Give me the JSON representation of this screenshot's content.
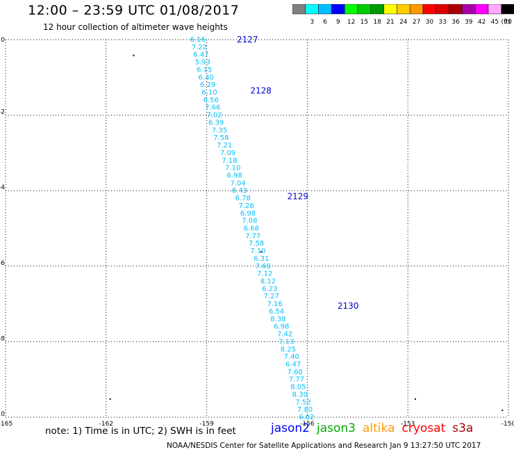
{
  "title": "12:00 – 23:59 UTC 01/08/2017",
  "subtitle": "12 hour collection of altimeter wave heights",
  "colorbar": {
    "unit": "(ft)",
    "bins": [
      {
        "label": "",
        "color": "#808080"
      },
      {
        "label": "3",
        "color": "#00ffff"
      },
      {
        "label": "6",
        "color": "#00bfff"
      },
      {
        "label": "9",
        "color": "#0000ff"
      },
      {
        "label": "12",
        "color": "#00ff00"
      },
      {
        "label": "15",
        "color": "#00cd00"
      },
      {
        "label": "18",
        "color": "#009900"
      },
      {
        "label": "21",
        "color": "#ffff00"
      },
      {
        "label": "24",
        "color": "#ffcc00"
      },
      {
        "label": "27",
        "color": "#ff9900"
      },
      {
        "label": "30",
        "color": "#ff0000"
      },
      {
        "label": "33",
        "color": "#dd0000"
      },
      {
        "label": "36",
        "color": "#aa0000"
      },
      {
        "label": "39",
        "color": "#aa00aa"
      },
      {
        "label": "42",
        "color": "#ff00ff"
      },
      {
        "label": "45",
        "color": "#ffaaff"
      },
      {
        "label": "70",
        "color": "#000000"
      }
    ]
  },
  "map": {
    "lon_range": [
      -165,
      -150
    ],
    "lat_range": [
      -10,
      0
    ],
    "lon_ticks": [
      -165,
      -162,
      -159,
      -156,
      -153,
      -150
    ],
    "lat_ticks": [
      0,
      -2,
      -4,
      -6,
      -8,
      -10
    ],
    "grid": true,
    "track_color": "#00bfff",
    "pass_color": "#0000cc",
    "passes": [
      {
        "label": "2127",
        "lon": -158.1,
        "lat": 0.0
      },
      {
        "label": "2128",
        "lon": -157.7,
        "lat": -1.35
      },
      {
        "label": "2129",
        "lon": -156.6,
        "lat": -4.15
      },
      {
        "label": "2130",
        "lon": -155.1,
        "lat": -7.05
      }
    ],
    "swh": [
      {
        "v": "6.16",
        "lon": -159.5,
        "lat": 0.0
      },
      {
        "v": "7.22",
        "lon": -159.45,
        "lat": -0.2
      },
      {
        "v": "6.47",
        "lon": -159.4,
        "lat": -0.4
      },
      {
        "v": "5.93",
        "lon": -159.35,
        "lat": -0.6
      },
      {
        "v": "6.15",
        "lon": -159.3,
        "lat": -0.8
      },
      {
        "v": "6.40",
        "lon": -159.25,
        "lat": -1.0
      },
      {
        "v": "6.29",
        "lon": -159.2,
        "lat": -1.2
      },
      {
        "v": "6.10",
        "lon": -159.15,
        "lat": -1.4
      },
      {
        "v": "6.56",
        "lon": -159.1,
        "lat": -1.6
      },
      {
        "v": "7.66",
        "lon": -159.05,
        "lat": -1.8
      },
      {
        "v": "7.02",
        "lon": -159.0,
        "lat": -2.0
      },
      {
        "v": "6.39",
        "lon": -158.95,
        "lat": -2.2
      },
      {
        "v": "7.35",
        "lon": -158.85,
        "lat": -2.4
      },
      {
        "v": "7.58",
        "lon": -158.8,
        "lat": -2.6
      },
      {
        "v": "7.21",
        "lon": -158.7,
        "lat": -2.8
      },
      {
        "v": "7.09",
        "lon": -158.6,
        "lat": -3.0
      },
      {
        "v": "7.18",
        "lon": -158.55,
        "lat": -3.2
      },
      {
        "v": "7.10",
        "lon": -158.45,
        "lat": -3.4
      },
      {
        "v": "6.98",
        "lon": -158.4,
        "lat": -3.6
      },
      {
        "v": "7.04",
        "lon": -158.3,
        "lat": -3.8
      },
      {
        "v": "8.43",
        "lon": -158.25,
        "lat": -4.0
      },
      {
        "v": "6.78",
        "lon": -158.15,
        "lat": -4.2
      },
      {
        "v": "7.26",
        "lon": -158.05,
        "lat": -4.4
      },
      {
        "v": "6.98",
        "lon": -158.0,
        "lat": -4.6
      },
      {
        "v": "7.08",
        "lon": -157.95,
        "lat": -4.8
      },
      {
        "v": "6.68",
        "lon": -157.9,
        "lat": -5.0
      },
      {
        "v": "7.77",
        "lon": -157.85,
        "lat": -5.2
      },
      {
        "v": "7.58",
        "lon": -157.75,
        "lat": -5.4
      },
      {
        "v": "7.10",
        "lon": -157.7,
        "lat": -5.6
      },
      {
        "v": "6.31",
        "lon": -157.6,
        "lat": -5.8
      },
      {
        "v": "7.69",
        "lon": -157.55,
        "lat": -6.0
      },
      {
        "v": "7.12",
        "lon": -157.5,
        "lat": -6.2
      },
      {
        "v": "8.12",
        "lon": -157.4,
        "lat": -6.4
      },
      {
        "v": "6.23",
        "lon": -157.35,
        "lat": -6.6
      },
      {
        "v": "7.27",
        "lon": -157.3,
        "lat": -6.8
      },
      {
        "v": "7.16",
        "lon": -157.2,
        "lat": -7.0
      },
      {
        "v": "6.54",
        "lon": -157.15,
        "lat": -7.2
      },
      {
        "v": "8.38",
        "lon": -157.1,
        "lat": -7.4
      },
      {
        "v": "6.98",
        "lon": -157.0,
        "lat": -7.6
      },
      {
        "v": "7.42",
        "lon": -156.9,
        "lat": -7.8
      },
      {
        "v": "7.13",
        "lon": -156.85,
        "lat": -8.0
      },
      {
        "v": "8.25",
        "lon": -156.8,
        "lat": -8.2
      },
      {
        "v": "7.40",
        "lon": -156.7,
        "lat": -8.4
      },
      {
        "v": "6.47",
        "lon": -156.65,
        "lat": -8.6
      },
      {
        "v": "7.60",
        "lon": -156.6,
        "lat": -8.8
      },
      {
        "v": "7.77",
        "lon": -156.55,
        "lat": -9.0
      },
      {
        "v": "8.05",
        "lon": -156.5,
        "lat": -9.2
      },
      {
        "v": "8.30",
        "lon": -156.45,
        "lat": -9.4
      },
      {
        "v": "7.52",
        "lon": -156.35,
        "lat": -9.6
      },
      {
        "v": "7.80",
        "lon": -156.3,
        "lat": -9.8
      },
      {
        "v": "6.82",
        "lon": -156.25,
        "lat": -10.0
      }
    ]
  },
  "note": "note: 1) Time is in UTC; 2) SWH is in feet",
  "satellites": [
    {
      "name": "jason2",
      "color": "#0000ff"
    },
    {
      "name": "jason3",
      "color": "#00aa00"
    },
    {
      "name": "altika",
      "color": "#ff9900"
    },
    {
      "name": "cryosat",
      "color": "#ff0000"
    },
    {
      "name": "s3a",
      "color": "#aa0000"
    }
  ],
  "credit": "NOAA/NESDIS Center for Satellite Applications and Research   Jan  9 13:27:50 UTC 2017"
}
